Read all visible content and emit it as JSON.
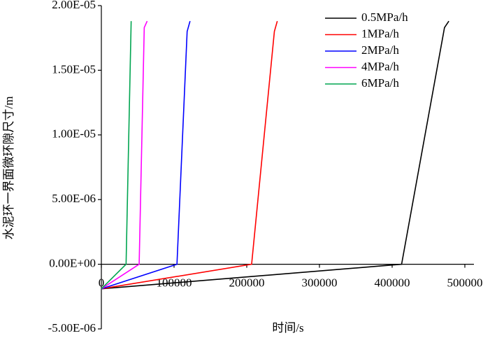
{
  "chart_data": {
    "type": "line",
    "x_label": "时间/s",
    "y_label": "水泥环一界面微环隙尺寸/m",
    "xlim": [
      0,
      500000
    ],
    "xticks": [
      0,
      100000,
      200000,
      300000,
      400000,
      500000
    ],
    "ylim": [
      -5e-06,
      2e-05
    ],
    "yticks": [
      {
        "value": -5e-06,
        "label": "-5.00E-06"
      },
      {
        "value": 0,
        "label": "0.00E+00"
      },
      {
        "value": 5e-06,
        "label": "5.00E-06"
      },
      {
        "value": 1e-05,
        "label": "1.00E-05"
      },
      {
        "value": 1.5e-05,
        "label": "1.50E-05"
      },
      {
        "value": 2e-05,
        "label": "2.00E-05"
      }
    ],
    "legend": "top-right",
    "series": [
      {
        "name": "0.5MPa/h",
        "color": "#000000",
        "x": [
          0,
          413000,
          472000,
          478000
        ],
        "values": [
          -1.9e-06,
          0,
          1.83e-05,
          1.88e-05
        ]
      },
      {
        "name": "1MPa/h",
        "color": "#ff0000",
        "x": [
          0,
          206700,
          238000,
          242000
        ],
        "values": [
          -1.9e-06,
          0,
          1.8e-05,
          1.88e-05
        ]
      },
      {
        "name": "2MPa/h",
        "color": "#0000ff",
        "x": [
          0,
          104000,
          118000,
          122000
        ],
        "values": [
          -1.9e-06,
          0,
          1.8e-05,
          1.88e-05
        ]
      },
      {
        "name": "4MPa/h",
        "color": "#ff00ff",
        "x": [
          0,
          52000,
          59000,
          63000
        ],
        "values": [
          -1.9e-06,
          0,
          1.83e-05,
          1.88e-05
        ]
      },
      {
        "name": "6MPa/h",
        "color": "#00a550",
        "x": [
          0,
          34000,
          41000
        ],
        "values": [
          -1.9e-06,
          0,
          1.88e-05
        ]
      }
    ]
  }
}
